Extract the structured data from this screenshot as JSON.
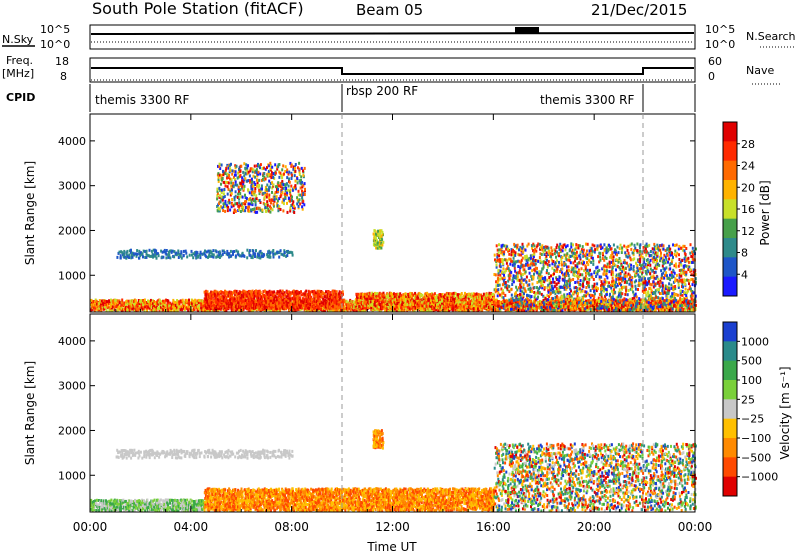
{
  "header": {
    "station": "South Pole Station (fitACF)",
    "beam": "Beam 05",
    "date": "21/Dec/2015"
  },
  "top_panels": {
    "nsky_label": "N.Sky",
    "nsearch_label": "N.Search",
    "freq_label": "Freq.",
    "freq_unit": "[MHz]",
    "nave_label": "Nave",
    "cpid_label": "CPID",
    "nsky_ticks": [
      "10^5",
      "10^0"
    ],
    "nsearch_ticks": [
      "10^5",
      "10^0"
    ],
    "freq_ticks": [
      "18",
      "8"
    ],
    "nave_ticks": [
      "60",
      "0"
    ],
    "cpid_segments": [
      {
        "label": "themis 3300 RF",
        "start_hour": 0.0,
        "end_hour": 10.0
      },
      {
        "label": "rbsp 200 RF",
        "start_hour": 10.0,
        "end_hour": 22.0
      },
      {
        "label": "themis 3300 RF",
        "start_hour": 22.0,
        "end_hour": 24.0
      }
    ]
  },
  "chart_data": [
    {
      "type": "heatmap",
      "name": "power",
      "ylabel": "Slant Range [km]",
      "xlabel": "",
      "x_ticks": [
        "00:00",
        "04:00",
        "08:00",
        "12:00",
        "16:00",
        "20:00",
        "00:00"
      ],
      "xlim_hours": [
        0,
        24
      ],
      "ylim_km": [
        180,
        4600
      ],
      "y_ticks": [
        1000,
        2000,
        3000,
        4000
      ],
      "colorbar": {
        "label": "Power [dB]",
        "ticks": [
          "28",
          "24",
          "20",
          "16",
          "12",
          "8",
          "4"
        ],
        "range": [
          0,
          30
        ],
        "colors": [
          "#1a1aff",
          "#1e56c8",
          "#2e8a8a",
          "#47a04a",
          "#c8e02a",
          "#ffb300",
          "#ff6a00",
          "#ff2a00",
          "#e00000"
        ]
      },
      "regions": [
        {
          "hours": [
            0.0,
            24.0
          ],
          "range_km": [
            200,
            450
          ],
          "level": "high"
        },
        {
          "hours": [
            4.5,
            10.0
          ],
          "range_km": [
            250,
            650
          ],
          "level": "very high"
        },
        {
          "hours": [
            10.5,
            16.0
          ],
          "range_km": [
            250,
            600
          ],
          "level": "high"
        },
        {
          "hours": [
            16.0,
            24.0
          ],
          "range_km": [
            200,
            1700
          ],
          "level": "scattered"
        },
        {
          "hours": [
            1.0,
            8.0
          ],
          "range_km": [
            1380,
            1560
          ],
          "level": "low"
        },
        {
          "hours": [
            5.0,
            8.5
          ],
          "range_km": [
            2400,
            3500
          ],
          "level": "scattered"
        },
        {
          "hours": [
            11.2,
            11.6
          ],
          "range_km": [
            1600,
            2000
          ],
          "level": "medium"
        }
      ]
    },
    {
      "type": "heatmap",
      "name": "velocity",
      "ylabel": "Slant Range [km]",
      "xlabel": "Time UT",
      "x_ticks": [
        "00:00",
        "04:00",
        "08:00",
        "12:00",
        "16:00",
        "20:00",
        "00:00"
      ],
      "xlim_hours": [
        0,
        24
      ],
      "ylim_km": [
        180,
        4600
      ],
      "y_ticks": [
        1000,
        2000,
        3000,
        4000
      ],
      "colorbar": {
        "label": "Velocity [m s⁻¹]",
        "ticks": [
          "1000",
          "500",
          "100",
          "25",
          "−25",
          "−100",
          "−500",
          "−1000"
        ],
        "colors": [
          "#1a3fd0",
          "#2a8a8a",
          "#3aa84a",
          "#7ad03a",
          "#c8c8c8",
          "#ffc000",
          "#ff8a00",
          "#ff4a00",
          "#e00000"
        ]
      },
      "regions": [
        {
          "hours": [
            0.0,
            4.5
          ],
          "range_km": [
            200,
            450
          ],
          "level": "low-velocity"
        },
        {
          "hours": [
            4.5,
            16.0
          ],
          "range_km": [
            200,
            700
          ],
          "level": "negative"
        },
        {
          "hours": [
            16.0,
            24.0
          ],
          "range_km": [
            200,
            1700
          ],
          "level": "mixed"
        },
        {
          "hours": [
            1.0,
            8.0
          ],
          "range_km": [
            1380,
            1560
          ],
          "level": "near zero"
        },
        {
          "hours": [
            11.2,
            11.6
          ],
          "range_km": [
            1600,
            2000
          ],
          "level": "negative"
        }
      ]
    }
  ]
}
